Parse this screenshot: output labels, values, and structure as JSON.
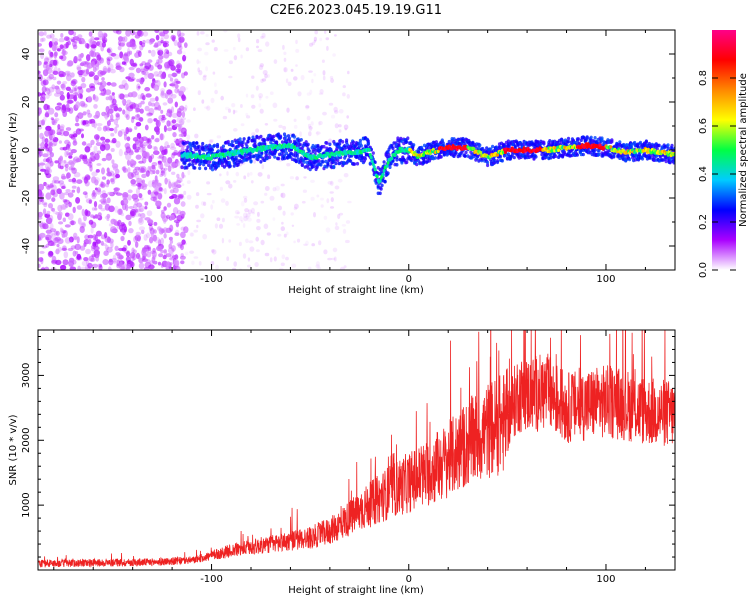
{
  "title": "C2E6.2023.045.19.19.G11",
  "chart_data": [
    {
      "type": "heatmap",
      "xlabel": "Height of straight line (km)",
      "ylabel": "Frequency (Hz)",
      "xlim": [
        -188,
        135
      ],
      "ylim": [
        -50,
        50
      ],
      "xticks": [
        -100,
        0,
        100
      ],
      "yticks": [
        -40,
        -20,
        0,
        20,
        40
      ],
      "grid": false,
      "colorbar": {
        "label": "Normalized spectral amplitude",
        "range": [
          0,
          1
        ],
        "ticks": [
          "0.0",
          "0.2",
          "0.4",
          "0.6",
          "0.8"
        ],
        "colormap": [
          "#ffffff",
          "#aa00ff",
          "#0000ff",
          "#00ccff",
          "#00ff44",
          "#ffff00",
          "#ff8800",
          "#ff0000",
          "#ff0088"
        ]
      },
      "ridge": {
        "x": [
          -115,
          -100,
          -80,
          -60,
          -50,
          -40,
          -30,
          -20,
          -15,
          -10,
          -5,
          0,
          5,
          10,
          20,
          30,
          40,
          50,
          60,
          70,
          80,
          90,
          100,
          110,
          120,
          135
        ],
        "y": [
          -2,
          -3,
          0,
          2,
          -3,
          -2,
          -1,
          0,
          -14,
          -4,
          0,
          0,
          -3,
          -1,
          1,
          1,
          -3,
          0,
          0,
          0,
          1,
          2,
          1,
          -1,
          0,
          -2
        ]
      }
    },
    {
      "type": "line",
      "xlabel": "Height of straight line (km)",
      "ylabel": "SNR (10 * v/v)",
      "xlim": [
        -188,
        135
      ],
      "ylim": [
        0,
        3700
      ],
      "xticks": [
        -100,
        0,
        100
      ],
      "yticks": [
        1000,
        2000,
        3000
      ],
      "grid": false,
      "color": "#ee2222",
      "series": [
        {
          "x": [
            -188,
            -160,
            -130,
            -110,
            -100,
            -90,
            -80,
            -70,
            -60,
            -50,
            -40,
            -30,
            -20,
            -10,
            0,
            10,
            20,
            30,
            40,
            50,
            55,
            60,
            70,
            80,
            90,
            100,
            110,
            120,
            135
          ],
          "values": [
            100,
            110,
            120,
            150,
            220,
            300,
            350,
            400,
            450,
            500,
            600,
            800,
            1000,
            1200,
            1350,
            1500,
            1700,
            1950,
            2150,
            2300,
            2700,
            2700,
            2750,
            2500,
            2550,
            2600,
            2550,
            2450,
            2400
          ]
        }
      ]
    }
  ]
}
